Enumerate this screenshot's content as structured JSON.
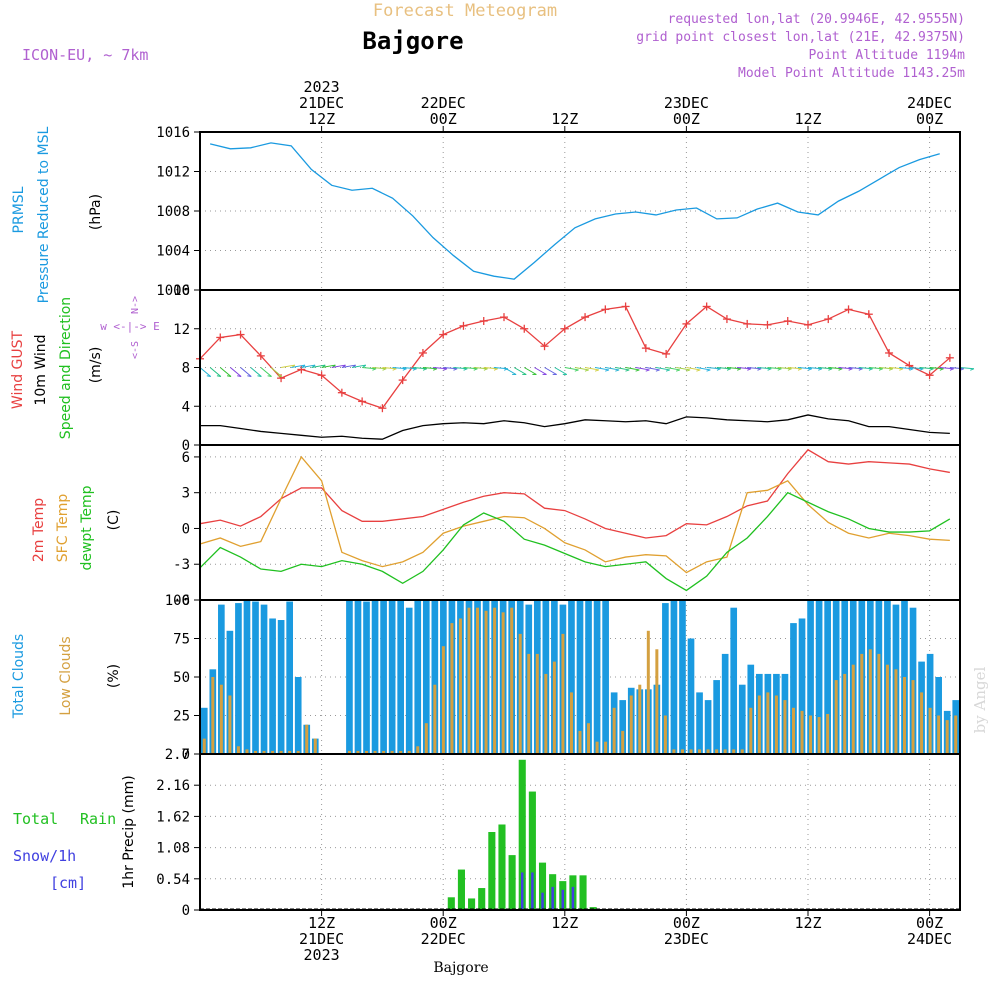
{
  "header": {
    "title": "Forecast Meteogram",
    "location": "Bajgore",
    "model": "ICON-EU, ~ 7km",
    "requested": "requested lon,lat (20.9946E, 42.9555N)",
    "grid_point": "grid point closest lon,lat (21E, 42.9375N)",
    "point_altitude": "Point Altitude 1194m",
    "model_altitude": "Model Point Altitude 1143.25m",
    "footer_location": "Bajgore",
    "credit": "by Angel"
  },
  "colors": {
    "pressure": "#1a9ae0",
    "gust": "#e84040",
    "wind": "#000000",
    "temp": "#e84040",
    "sfc": "#e0a030",
    "dewpt": "#20c020",
    "totalCloud": "#1a9ae0",
    "lowCloud": "#d4a040",
    "rain": "#22c022",
    "snow": "#4040e0",
    "purple": "#b060d0",
    "gold": "#e8c080"
  },
  "time_axis": {
    "top": [
      {
        "line1": "2023",
        "line2": "21DEC",
        "line3": "12Z"
      },
      {
        "line1": "",
        "line2": "22DEC",
        "line3": "00Z"
      },
      {
        "line1": "",
        "line2": "",
        "line3": "12Z"
      },
      {
        "line1": "",
        "line2": "23DEC",
        "line3": "00Z"
      },
      {
        "line1": "",
        "line2": "",
        "line3": "12Z"
      },
      {
        "line1": "",
        "line2": "24DEC",
        "line3": "00Z"
      }
    ],
    "bottom": [
      {
        "line1": "12Z",
        "line2": "21DEC",
        "line3": "2023"
      },
      {
        "line1": "00Z",
        "line2": "22DEC",
        "line3": ""
      },
      {
        "line1": "12Z",
        "line2": "",
        "line3": ""
      },
      {
        "line1": "00Z",
        "line2": "23DEC",
        "line3": ""
      },
      {
        "line1": "12Z",
        "line2": "",
        "line3": ""
      },
      {
        "line1": "00Z",
        "line2": "24DEC",
        "line3": ""
      }
    ]
  },
  "panels": {
    "pressure": {
      "label1": "PRMSL",
      "label2": "Pressure Reduced to MSL",
      "unit": "(hPa)"
    },
    "wind": {
      "label1": "Wind GUST",
      "label2": "10m Wind",
      "label3": "Speed and Direction",
      "unit": "(m/s)",
      "compass": "w <-|-> E",
      "compass_ns_top": "N->",
      "compass_ns_bottom": "<-S"
    },
    "temp": {
      "label1": "2m Temp",
      "label2": "SFC Temp",
      "label3": "dewpt Temp",
      "unit": "(C)"
    },
    "clouds": {
      "label1": "Total Clouds",
      "label2": "Low Clouds",
      "unit": "(%)"
    },
    "precip": {
      "label1": "Total",
      "label2": "Rain",
      "label3": "Snow/1h",
      "label4": "[cm]",
      "unit": "1hr Precip (mm)"
    }
  },
  "chart_data": [
    {
      "type": "line",
      "title": "PRMSL",
      "ylabel": "(hPa)",
      "ylim": [
        1000,
        1016
      ],
      "yticks": [
        "1016",
        "1012",
        "1008",
        "1004",
        "1000"
      ],
      "x": [
        1,
        3,
        5,
        7,
        9,
        11,
        13,
        15,
        17,
        19,
        21,
        23,
        25,
        27,
        29,
        31,
        33,
        35,
        37,
        39,
        41,
        43,
        45,
        47,
        49,
        51,
        53,
        55,
        57,
        59,
        61,
        63,
        65,
        67,
        69,
        71,
        73
      ],
      "series": [
        {
          "name": "PRMSL",
          "values": [
            1014.8,
            1014.3,
            1014.4,
            1014.9,
            1014.6,
            1012.2,
            1010.6,
            1010.1,
            1010.3,
            1009.3,
            1007.5,
            1005.3,
            1003.5,
            1001.9,
            1001.4,
            1001.1,
            1002.8,
            1004.6,
            1006.3,
            1007.2,
            1007.7,
            1007.9,
            1007.6,
            1008.1,
            1008.3,
            1007.2,
            1007.3,
            1008.2,
            1008.8,
            1007.9,
            1007.6,
            1009.0,
            1010.0,
            1011.2,
            1012.4,
            1013.2,
            1013.8
          ]
        }
      ]
    },
    {
      "type": "line",
      "title": "Wind GUST / 10m Wind",
      "ylabel": "(m/s)",
      "ylim": [
        0,
        16
      ],
      "yticks": [
        "16",
        "12",
        "8",
        "4",
        "0"
      ],
      "x": [
        0,
        2,
        4,
        6,
        8,
        10,
        12,
        14,
        16,
        18,
        20,
        22,
        24,
        26,
        28,
        30,
        32,
        34,
        36,
        38,
        40,
        42,
        44,
        46,
        48,
        50,
        52,
        54,
        56,
        58,
        60,
        62,
        64,
        66,
        68,
        70,
        72,
        74
      ],
      "series": [
        {
          "name": "Wind GUST",
          "values": [
            8.9,
            11.1,
            11.4,
            9.2,
            6.9,
            7.8,
            7.2,
            5.4,
            4.5,
            3.8,
            6.7,
            9.5,
            11.4,
            12.3,
            12.8,
            13.2,
            12.0,
            10.2,
            12.0,
            13.2,
            14.0,
            14.3,
            10.0,
            9.4,
            12.5,
            14.3,
            13.0,
            12.5,
            12.4,
            12.8,
            12.4,
            13.0,
            14.0,
            13.5,
            9.5,
            8.2,
            7.2,
            9.0
          ]
        },
        {
          "name": "10m Wind",
          "values": [
            2.0,
            2.0,
            1.7,
            1.4,
            1.2,
            1.0,
            0.8,
            0.9,
            0.7,
            0.6,
            1.5,
            2.0,
            2.2,
            2.3,
            2.2,
            2.5,
            2.3,
            1.9,
            2.2,
            2.6,
            2.5,
            2.4,
            2.5,
            2.2,
            2.9,
            2.8,
            2.6,
            2.5,
            2.4,
            2.6,
            3.1,
            2.7,
            2.5,
            1.9,
            1.9,
            1.6,
            1.3,
            1.2
          ]
        }
      ]
    },
    {
      "type": "line",
      "title": "2m Temp / SFC Temp / dewpt Temp",
      "ylabel": "(C)",
      "ylim": [
        -6,
        7
      ],
      "yticks": [
        "6",
        "3",
        "0",
        "-3",
        "-6"
      ],
      "x": [
        0,
        2,
        4,
        6,
        8,
        10,
        12,
        14,
        16,
        18,
        20,
        22,
        24,
        26,
        28,
        30,
        32,
        34,
        36,
        38,
        40,
        42,
        44,
        46,
        48,
        50,
        52,
        54,
        56,
        58,
        60,
        62,
        64,
        66,
        68,
        70,
        72,
        74
      ],
      "series": [
        {
          "name": "2m Temp",
          "values": [
            0.4,
            0.7,
            0.2,
            1.0,
            2.5,
            3.4,
            3.4,
            1.5,
            0.6,
            0.6,
            0.8,
            1.0,
            1.6,
            2.2,
            2.7,
            3.0,
            2.9,
            1.7,
            1.5,
            0.8,
            0.0,
            -0.4,
            -0.8,
            -0.6,
            0.4,
            0.3,
            1.0,
            1.9,
            2.3,
            4.6,
            6.6,
            5.6,
            5.4,
            5.6,
            5.5,
            5.4,
            5.0,
            4.7
          ]
        },
        {
          "name": "SFC Temp",
          "values": [
            -1.3,
            -0.8,
            -1.5,
            -1.1,
            2.5,
            6.0,
            4.0,
            -2.0,
            -2.7,
            -3.2,
            -2.8,
            -2.0,
            -0.4,
            0.2,
            0.6,
            1.0,
            0.9,
            0.0,
            -1.2,
            -1.8,
            -2.8,
            -2.4,
            -2.2,
            -2.3,
            -3.7,
            -2.8,
            -2.4,
            3.0,
            3.2,
            4.0,
            2.0,
            0.5,
            -0.4,
            -0.8,
            -0.4,
            -0.6,
            -0.9,
            -1.0
          ]
        },
        {
          "name": "dewpt Temp",
          "values": [
            -3.3,
            -1.6,
            -2.4,
            -3.4,
            -3.6,
            -3.0,
            -3.2,
            -2.7,
            -3.0,
            -3.6,
            -4.6,
            -3.6,
            -1.8,
            0.3,
            1.3,
            0.6,
            -0.9,
            -1.4,
            -2.1,
            -2.8,
            -3.2,
            -3.0,
            -2.8,
            -4.2,
            -5.2,
            -4.0,
            -2.0,
            -0.8,
            1.0,
            3.0,
            2.2,
            1.4,
            0.8,
            0.0,
            -0.3,
            -0.3,
            -0.2,
            0.8
          ]
        }
      ]
    },
    {
      "type": "bar",
      "title": "Total Clouds / Low Clouds",
      "ylabel": "(%)",
      "ylim": [
        0,
        100
      ],
      "yticks": [
        "100",
        "75",
        "50",
        "25",
        "0"
      ],
      "series": [
        {
          "name": "Total Clouds",
          "values": [
            30,
            55,
            97,
            80,
            98,
            100,
            99,
            97,
            88,
            87,
            99,
            50,
            19,
            10,
            0,
            0,
            0,
            100,
            100,
            99,
            100,
            100,
            100,
            100,
            95,
            100,
            100,
            100,
            100,
            100,
            100,
            100,
            100,
            100,
            100,
            100,
            100,
            100,
            97,
            100,
            100,
            100,
            97,
            100,
            100,
            100,
            100,
            100,
            40,
            35,
            43,
            42,
            42,
            45,
            98,
            100,
            100,
            75,
            40,
            35,
            48,
            65,
            95,
            45,
            58,
            52,
            52,
            52,
            52,
            85,
            88,
            100,
            100,
            100,
            100,
            100,
            100,
            100,
            100,
            100,
            100,
            97,
            100,
            95,
            60,
            65,
            50,
            28,
            35
          ]
        },
        {
          "name": "Low Clouds",
          "values": [
            10,
            50,
            45,
            38,
            5,
            3,
            2,
            2,
            2,
            2,
            2,
            2,
            19,
            10,
            0,
            0,
            0,
            2,
            2,
            2,
            2,
            2,
            2,
            2,
            2,
            5,
            20,
            45,
            70,
            85,
            88,
            95,
            95,
            93,
            95,
            92,
            95,
            78,
            65,
            65,
            52,
            60,
            78,
            40,
            15,
            20,
            8,
            8,
            30,
            15,
            38,
            45,
            80,
            68,
            25,
            3,
            3,
            3,
            3,
            3,
            3,
            3,
            3,
            3,
            30,
            38,
            40,
            38,
            35,
            30,
            28,
            25,
            24,
            26,
            48,
            52,
            58,
            65,
            68,
            65,
            58,
            55,
            50,
            48,
            40,
            30,
            25,
            22,
            25
          ]
        }
      ]
    },
    {
      "type": "bar",
      "title": "1hr Precip",
      "ylabel": "1hr Precip (mm)",
      "ylim": [
        0,
        2.7
      ],
      "yticks": [
        "2.7",
        "2.16",
        "1.62",
        "1.08",
        "0.54",
        "0"
      ],
      "series": [
        {
          "name": "Total Rain",
          "values": [
            0.22,
            0.7,
            0.2,
            0.38,
            1.35,
            1.48,
            0.95,
            2.6,
            2.05,
            0.82,
            0.62,
            0.5,
            0.6,
            0.6,
            0.05
          ]
        },
        {
          "name": "Snow/1h",
          "values": [
            0.0,
            0.0,
            0.0,
            0.0,
            0.0,
            0.0,
            0.0,
            0.65,
            0.65,
            0.3,
            0.4,
            0.35,
            0.4,
            0.0,
            0.0
          ]
        }
      ]
    }
  ]
}
